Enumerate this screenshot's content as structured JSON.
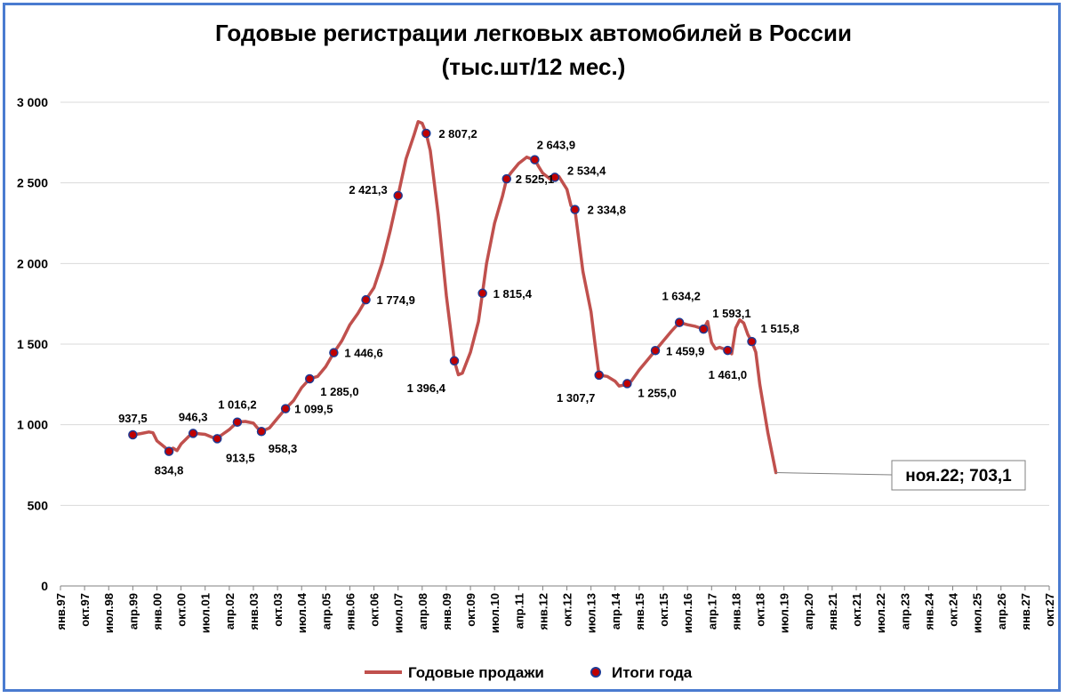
{
  "chart_data": {
    "type": "line",
    "title_line1": "Годовые регистрации легковых автомобилей в России",
    "title_line2": "(тыс.шт/12 мес.)",
    "ylim": [
      0,
      3000
    ],
    "y_ticks": [
      "0",
      "500",
      "1 000",
      "1 500",
      "2 000",
      "2 500",
      "3 000"
    ],
    "y_tick_values": [
      0,
      500,
      1000,
      1500,
      2000,
      2500,
      3000
    ],
    "x_tick_labels": [
      "янв.97",
      "окт.97",
      "июл.98",
      "апр.99",
      "янв.00",
      "окт.00",
      "июл.01",
      "апр.02",
      "янв.03",
      "окт.03",
      "июл.04",
      "апр.05",
      "янв.06",
      "окт.06",
      "июл.07",
      "апр.08",
      "янв.09",
      "окт.09",
      "июл.10",
      "апр.11",
      "янв.12",
      "окт.12",
      "июл.13",
      "апр.14",
      "янв.15",
      "окт.15",
      "июл.16",
      "апр.17",
      "янв.18",
      "окт.18",
      "июл.19",
      "апр.20",
      "янв.21",
      "окт.21",
      "июл.22",
      "апр.23",
      "янв.24",
      "окт.24",
      "июл.25",
      "апр.26",
      "янв.27",
      "окт.27"
    ],
    "grid": true,
    "legend_position": "bottom",
    "series": [
      {
        "name": "Годовые продажи",
        "color": "#c0504d",
        "points": [
          [
            9,
            937.5
          ],
          [
            10,
            945
          ],
          [
            11,
            955
          ],
          [
            11.5,
            950
          ],
          [
            12,
            900
          ],
          [
            13,
            860
          ],
          [
            13.5,
            834.8
          ],
          [
            14,
            855
          ],
          [
            14.5,
            840
          ],
          [
            15,
            880
          ],
          [
            16,
            930
          ],
          [
            16.5,
            946.3
          ],
          [
            17,
            945
          ],
          [
            18,
            940
          ],
          [
            19,
            920
          ],
          [
            19.5,
            913.5
          ],
          [
            20,
            935
          ],
          [
            21,
            970
          ],
          [
            22,
            1016.2
          ],
          [
            23,
            1020
          ],
          [
            24,
            1010
          ],
          [
            24.5,
            980
          ],
          [
            25,
            958.3
          ],
          [
            26,
            980
          ],
          [
            27,
            1040
          ],
          [
            28,
            1099.5
          ],
          [
            29,
            1150
          ],
          [
            30,
            1230
          ],
          [
            31,
            1285.0
          ],
          [
            32,
            1300
          ],
          [
            33,
            1360
          ],
          [
            34,
            1446.6
          ],
          [
            35,
            1520
          ],
          [
            36,
            1620
          ],
          [
            37,
            1690
          ],
          [
            38,
            1774.9
          ],
          [
            39,
            1850
          ],
          [
            40,
            2000
          ],
          [
            41,
            2200
          ],
          [
            42,
            2421.3
          ],
          [
            43,
            2650
          ],
          [
            44,
            2800
          ],
          [
            44.5,
            2880
          ],
          [
            45,
            2870
          ],
          [
            45.5,
            2807.2
          ],
          [
            46,
            2700
          ],
          [
            47,
            2300
          ],
          [
            48,
            1800
          ],
          [
            48.5,
            1600
          ],
          [
            49,
            1396.4
          ],
          [
            49.5,
            1310
          ],
          [
            50,
            1320
          ],
          [
            51,
            1450
          ],
          [
            52,
            1640
          ],
          [
            52.5,
            1815.4
          ],
          [
            53,
            2000
          ],
          [
            54,
            2250
          ],
          [
            55,
            2420
          ],
          [
            55.5,
            2525.1
          ],
          [
            56,
            2560
          ],
          [
            57,
            2620
          ],
          [
            58,
            2660
          ],
          [
            58.5,
            2650
          ],
          [
            59,
            2643.9
          ],
          [
            59.5,
            2600
          ],
          [
            60,
            2560
          ],
          [
            61,
            2520
          ],
          [
            61.5,
            2534.4
          ],
          [
            62,
            2540
          ],
          [
            63,
            2460
          ],
          [
            63.5,
            2360
          ],
          [
            64,
            2334.8
          ],
          [
            65,
            1950
          ],
          [
            66,
            1700
          ],
          [
            66.5,
            1500
          ],
          [
            67,
            1307.7
          ],
          [
            68,
            1300
          ],
          [
            69,
            1270
          ],
          [
            69.5,
            1240
          ],
          [
            70,
            1245
          ],
          [
            70.5,
            1255.0
          ],
          [
            71,
            1270
          ],
          [
            72,
            1340
          ],
          [
            73,
            1400
          ],
          [
            74,
            1459.9
          ],
          [
            75,
            1520
          ],
          [
            76,
            1580
          ],
          [
            77,
            1634.2
          ],
          [
            78,
            1620
          ],
          [
            79,
            1610
          ],
          [
            80,
            1593.1
          ],
          [
            80.5,
            1640
          ],
          [
            81,
            1510
          ],
          [
            81.5,
            1470
          ],
          [
            82,
            1480
          ],
          [
            83,
            1461.0
          ],
          [
            83.5,
            1440
          ],
          [
            84,
            1600
          ],
          [
            84.5,
            1650
          ],
          [
            85,
            1630
          ],
          [
            85.5,
            1560
          ],
          [
            86,
            1515.8
          ],
          [
            86.5,
            1450
          ],
          [
            87,
            1250
          ],
          [
            88,
            950
          ],
          [
            89,
            703.1
          ]
        ]
      }
    ],
    "markers": {
      "name": "Итоги года",
      "color": "#c00000",
      "stroke": "#1f3a93",
      "points": [
        {
          "x": 9,
          "y": 937.5,
          "label": "937,5"
        },
        {
          "x": 13.5,
          "y": 834.8,
          "label": "834,8"
        },
        {
          "x": 16.5,
          "y": 946.3,
          "label": "946,3"
        },
        {
          "x": 19.5,
          "y": 913.5,
          "label": "913,5"
        },
        {
          "x": 22,
          "y": 1016.2,
          "label": "1 016,2"
        },
        {
          "x": 25,
          "y": 958.3,
          "label": "958,3"
        },
        {
          "x": 28,
          "y": 1099.5,
          "label": "1 099,5"
        },
        {
          "x": 31,
          "y": 1285.0,
          "label": "1 285,0"
        },
        {
          "x": 34,
          "y": 1446.6,
          "label": "1 446,6"
        },
        {
          "x": 38,
          "y": 1774.9,
          "label": "1 774,9"
        },
        {
          "x": 42,
          "y": 2421.3,
          "label": "2 421,3"
        },
        {
          "x": 45.5,
          "y": 2807.2,
          "label": "2 807,2"
        },
        {
          "x": 49,
          "y": 1396.4,
          "label": "1 396,4"
        },
        {
          "x": 52.5,
          "y": 1815.4,
          "label": "1 815,4"
        },
        {
          "x": 55.5,
          "y": 2525.1,
          "label": "2 525,1"
        },
        {
          "x": 59,
          "y": 2643.9,
          "label": "2 643,9"
        },
        {
          "x": 61.5,
          "y": 2534.4,
          "label": "2 534,4"
        },
        {
          "x": 64,
          "y": 2334.8,
          "label": "2 334,8"
        },
        {
          "x": 67,
          "y": 1307.7,
          "label": "1 307,7"
        },
        {
          "x": 70.5,
          "y": 1255.0,
          "label": "1 255,0"
        },
        {
          "x": 74,
          "y": 1459.9,
          "label": "1 459,9"
        },
        {
          "x": 77,
          "y": 1634.2,
          "label": "1 634,2"
        },
        {
          "x": 80,
          "y": 1593.1,
          "label": "1 593,1"
        },
        {
          "x": 83,
          "y": 1461.0,
          "label": "1 461,0"
        },
        {
          "x": 86,
          "y": 1515.8,
          "label": "1 515,8"
        }
      ]
    },
    "callout": {
      "x": 89,
      "y": 703.1,
      "label": "ноя.22;  703,1"
    }
  },
  "legend": {
    "line_label": "Годовые продажи",
    "marker_label": "Итоги года"
  }
}
